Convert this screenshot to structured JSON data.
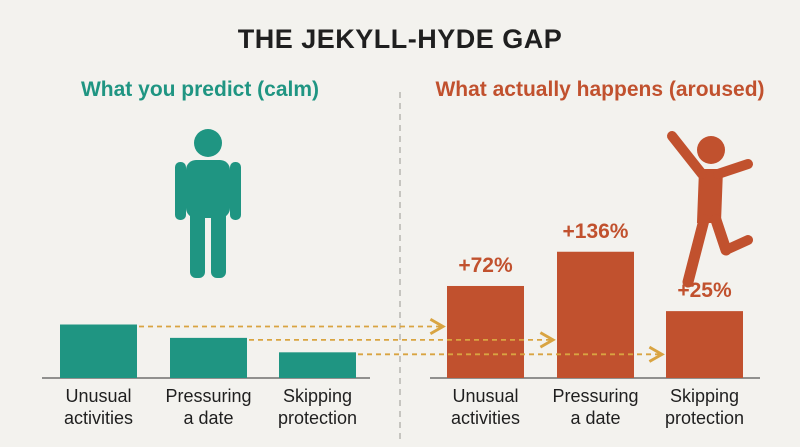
{
  "title": "THE JEKYLL-HYDE GAP",
  "colors": {
    "calm": "#1f9582",
    "aroused": "#c1512e",
    "arrow": "#d9a441",
    "divider": "#b8b6b0",
    "axis": "#555555"
  },
  "icons": {
    "calm_figure": "standing-person-icon",
    "aroused_figure": "excited-person-icon"
  },
  "chart_data": [
    {
      "type": "bar",
      "title": "What you predict (calm)",
      "categories": [
        "Unusual\nactivities",
        "Pressuring\na date",
        "Skipping\nprotection"
      ],
      "values": [
        100,
        75,
        48
      ],
      "value_unit": "relative (baseline, unlabeled)",
      "color": "#1f9582"
    },
    {
      "type": "bar",
      "title": "What actually happens (aroused)",
      "categories": [
        "Unusual\nactivities",
        "Pressuring\na date",
        "Skipping\nprotection"
      ],
      "values": [
        172,
        236,
        125
      ],
      "value_labels": [
        "+72%",
        "+136%",
        "+25%"
      ],
      "color": "#c1512e"
    }
  ]
}
